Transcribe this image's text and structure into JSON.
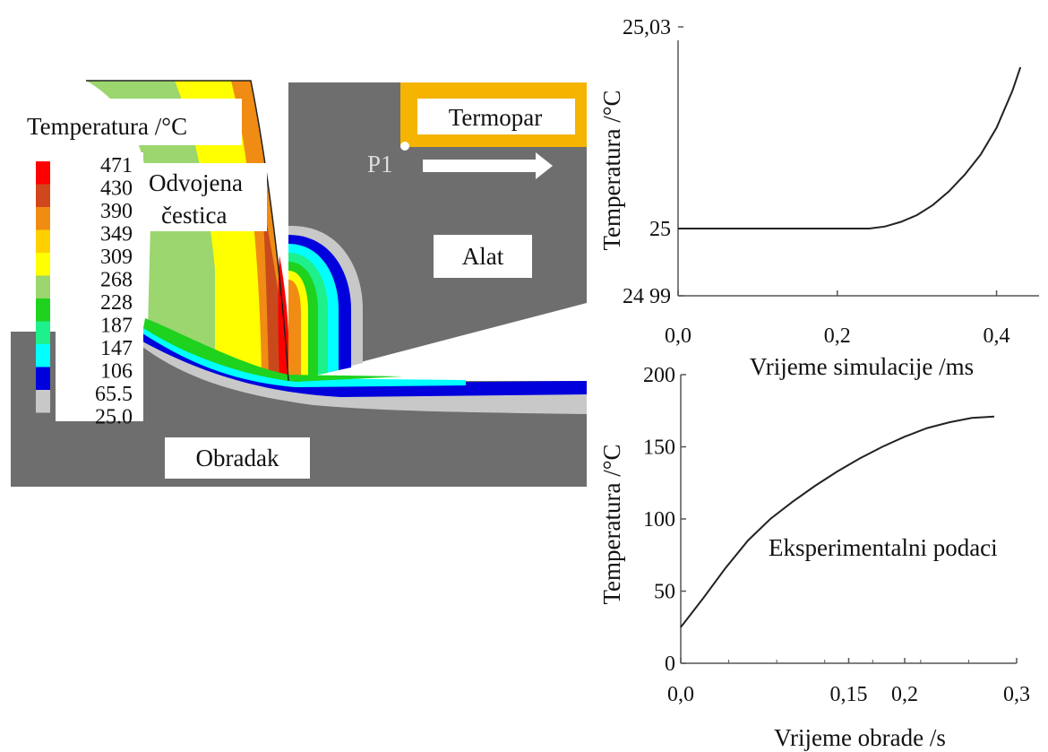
{
  "simulation_panel": {
    "legend_title": "Temperatura /°C",
    "legend_values": [
      "471",
      "430",
      "390",
      "349",
      "309",
      "268",
      "228",
      "187",
      "147",
      "106",
      "65.5",
      "25.0"
    ],
    "legend_colors": [
      "#ff0000",
      "#d2461c",
      "#f08c14",
      "#ffd000",
      "#ffff00",
      "#9bd66e",
      "#1ed21e",
      "#1ef08c",
      "#00ffff",
      "#0000dc",
      "#c8c8c8"
    ],
    "labels": {
      "chip_line1": "Odvojena",
      "chip_line2": "čestica",
      "tool": "Alat",
      "workpiece": "Obradak",
      "thermocouple": "Termopar",
      "point": "P1"
    },
    "colors": {
      "body_gray": "#6e6e6e",
      "thermocouple": "#f5b400"
    }
  },
  "chart_data": [
    {
      "type": "line",
      "title": "",
      "xlabel": "Vrijeme simulacije /ms",
      "ylabel": "Temperatura /°C",
      "xlim": [
        0.0,
        0.45
      ],
      "ylim": [
        24.99,
        25.03
      ],
      "x_ticks": [
        0.0,
        0.2,
        0.4
      ],
      "x_tick_labels": [
        "0,0",
        "0,2",
        "0,4"
      ],
      "y_ticks": [
        24.99,
        25.0,
        25.03
      ],
      "y_tick_labels": [
        "24 99",
        "25",
        "25,03"
      ],
      "series": [
        {
          "x": [
            0.0,
            0.1,
            0.2,
            0.24,
            0.26,
            0.28,
            0.3,
            0.32,
            0.34,
            0.36,
            0.38,
            0.4,
            0.42,
            0.43
          ],
          "y": [
            25.0,
            25.0,
            25.0,
            25.0,
            25.0003,
            25.001,
            25.002,
            25.0035,
            25.0055,
            25.008,
            25.011,
            25.015,
            25.0205,
            25.024
          ]
        }
      ]
    },
    {
      "type": "line",
      "title": "",
      "xlabel": "Vrijeme obrade /s",
      "ylabel": "Temperatura /°C",
      "annotation": "Eksperimentalni podaci",
      "xlim": [
        0.0,
        0.3
      ],
      "ylim": [
        0,
        200
      ],
      "x_ticks": [
        0.0,
        0.15,
        0.2,
        0.3
      ],
      "x_tick_labels": [
        "0,0",
        "0,15",
        "0,2",
        "0,3"
      ],
      "y_ticks": [
        0,
        50,
        100,
        150,
        200
      ],
      "y_tick_labels": [
        "0",
        "50",
        "100",
        "150",
        "200"
      ],
      "series": [
        {
          "x": [
            0.0,
            0.02,
            0.04,
            0.06,
            0.08,
            0.1,
            0.12,
            0.14,
            0.16,
            0.18,
            0.2,
            0.22,
            0.24,
            0.26,
            0.28
          ],
          "y": [
            25,
            45,
            66,
            85,
            100,
            112,
            123,
            133,
            142,
            150,
            157,
            163,
            167,
            170,
            171
          ]
        }
      ]
    }
  ]
}
